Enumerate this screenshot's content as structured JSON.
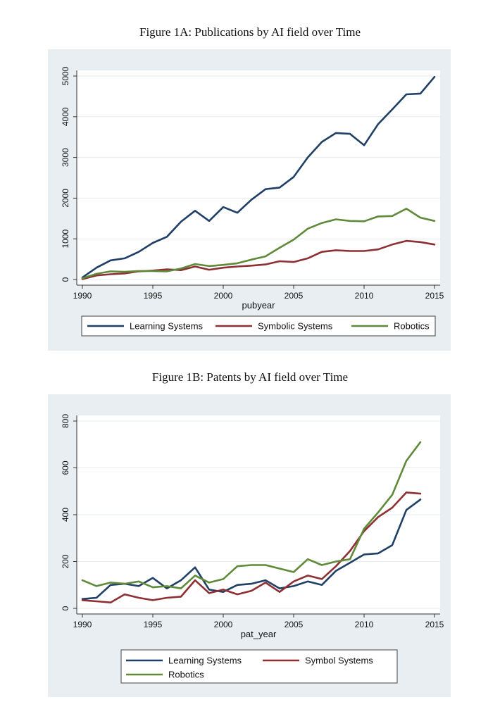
{
  "chart_data": [
    {
      "type": "line",
      "title": "Figure 1A: Publications by AI field over Time",
      "xlabel": "pubyear",
      "ylabel": "",
      "xlim": [
        1990,
        2015
      ],
      "ylim": [
        0,
        5000
      ],
      "xticks": [
        1990,
        1995,
        2000,
        2005,
        2010,
        2015
      ],
      "yticks": [
        0,
        1000,
        2000,
        3000,
        4000,
        5000
      ],
      "grid": true,
      "legend_position": "bottom",
      "x": [
        1990,
        1991,
        1992,
        1993,
        1994,
        1995,
        1996,
        1997,
        1998,
        1999,
        2000,
        2001,
        2002,
        2003,
        2004,
        2005,
        2006,
        2007,
        2008,
        2009,
        2010,
        2011,
        2012,
        2013,
        2014,
        2015
      ],
      "series": [
        {
          "name": "Learning Systems",
          "color": "#1f3f66",
          "values": [
            50,
            290,
            470,
            520,
            680,
            900,
            1050,
            1420,
            1690,
            1440,
            1780,
            1640,
            1960,
            2220,
            2260,
            2520,
            3000,
            3380,
            3600,
            3580,
            3300,
            3820,
            4180,
            4550,
            4570,
            4980
          ]
        },
        {
          "name": "Symbolic Systems",
          "color": "#8e2f33",
          "values": [
            10,
            100,
            130,
            150,
            200,
            220,
            250,
            230,
            320,
            240,
            290,
            320,
            340,
            370,
            450,
            430,
            520,
            680,
            720,
            700,
            700,
            740,
            860,
            950,
            920,
            860
          ]
        },
        {
          "name": "Robotics",
          "color": "#5f8a3a",
          "values": [
            30,
            140,
            200,
            190,
            210,
            210,
            200,
            270,
            380,
            330,
            360,
            400,
            490,
            570,
            780,
            980,
            1250,
            1390,
            1480,
            1440,
            1430,
            1550,
            1560,
            1740,
            1520,
            1440
          ]
        }
      ]
    },
    {
      "type": "line",
      "title": "Figure 1B: Patents by AI field over Time",
      "xlabel": "pat_year",
      "ylabel": "",
      "xlim": [
        1990,
        2015
      ],
      "ylim": [
        0,
        800
      ],
      "xticks": [
        1990,
        1995,
        2000,
        2005,
        2010,
        2015
      ],
      "yticks": [
        0,
        200,
        400,
        600,
        800
      ],
      "grid": true,
      "legend_position": "bottom",
      "x": [
        1990,
        1991,
        1992,
        1993,
        1994,
        1995,
        1996,
        1997,
        1998,
        1999,
        2000,
        2001,
        2002,
        2003,
        2004,
        2005,
        2006,
        2007,
        2008,
        2009,
        2010,
        2011,
        2012,
        2013,
        2014
      ],
      "series": [
        {
          "name": "Learning Systems",
          "color": "#1f3f66",
          "values": [
            40,
            45,
            100,
            105,
            95,
            130,
            85,
            120,
            175,
            80,
            70,
            100,
            105,
            120,
            85,
            95,
            115,
            100,
            160,
            195,
            230,
            235,
            270,
            420,
            465
          ]
        },
        {
          "name": "Symbol Systems",
          "color": "#8e2f33",
          "values": [
            35,
            30,
            25,
            60,
            45,
            35,
            45,
            50,
            120,
            65,
            80,
            60,
            75,
            110,
            70,
            115,
            140,
            125,
            180,
            245,
            330,
            390,
            430,
            495,
            490
          ]
        },
        {
          "name": "Robotics",
          "color": "#5f8a3a",
          "values": [
            120,
            95,
            110,
            105,
            115,
            90,
            95,
            85,
            140,
            110,
            125,
            180,
            185,
            185,
            170,
            155,
            210,
            185,
            200,
            210,
            340,
            410,
            485,
            630,
            710
          ]
        }
      ]
    }
  ]
}
